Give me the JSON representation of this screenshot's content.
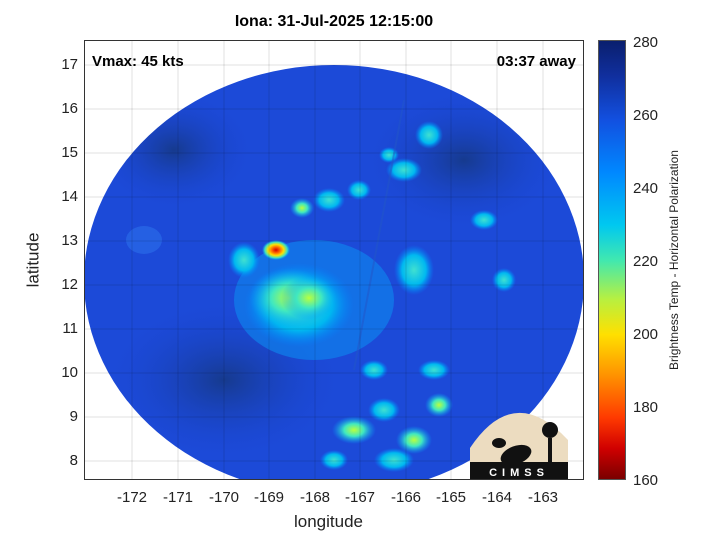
{
  "title": "Iona: 31-Jul-2025 12:15:00",
  "vmax": "Vmax: 45 kts",
  "away": "03:37 away",
  "xlabel": "longitude",
  "ylabel": "latitude",
  "xticks": [
    "-172",
    "-171",
    "-170",
    "-169",
    "-168",
    "-167",
    "-166",
    "-165",
    "-164",
    "-163"
  ],
  "yticks": [
    "8",
    "9",
    "10",
    "11",
    "12",
    "13",
    "14",
    "15",
    "16",
    "17"
  ],
  "colorbar": {
    "label": "Brightness Temp - Horizontal Polarization",
    "ticks": [
      "160",
      "180",
      "200",
      "220",
      "240",
      "260",
      "280"
    ],
    "range": [
      160,
      280
    ]
  },
  "logo": {
    "text": "CIMSS"
  },
  "map": {
    "extent_lon": [
      -172.9,
      -162.6
    ],
    "extent_lat": [
      7.6,
      17.6
    ],
    "center_lon": -167.8,
    "center_lat": 12.6,
    "grid": true,
    "colors": {
      "background": "#1a46d8",
      "deep": "#163a8e",
      "warm": "#e01010"
    }
  }
}
